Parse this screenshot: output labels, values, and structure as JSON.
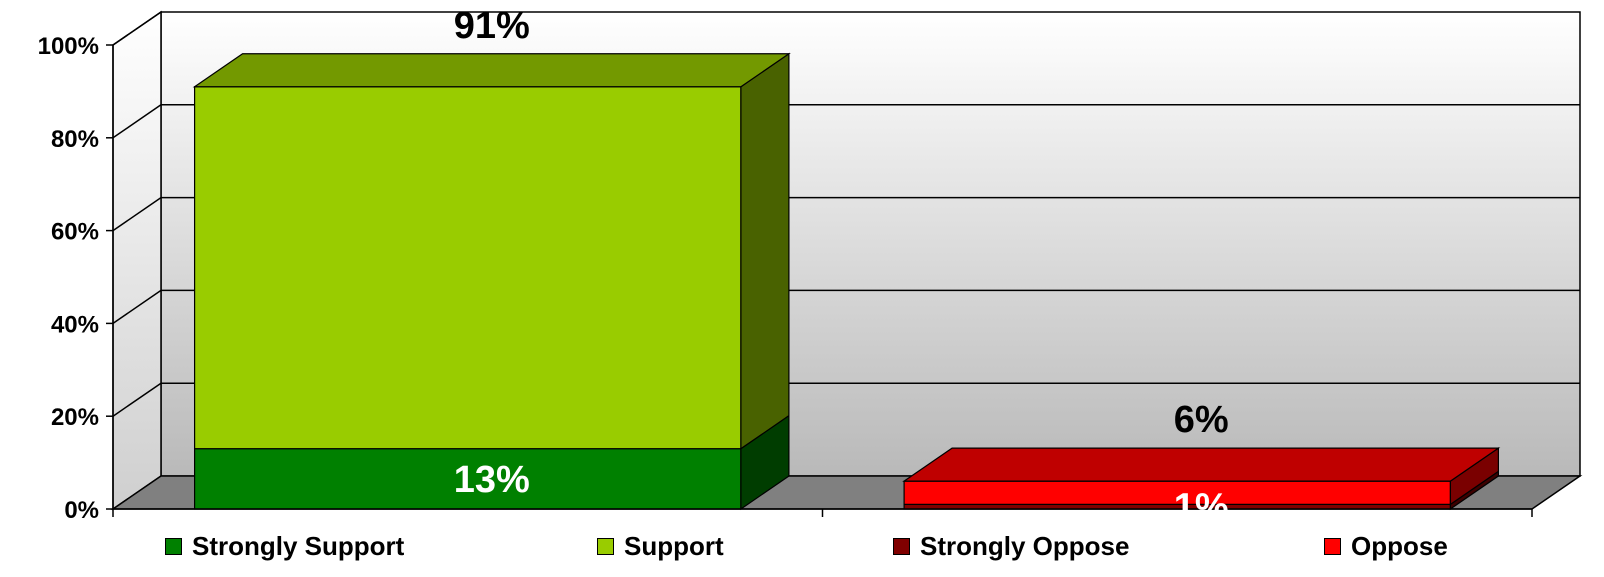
{
  "chart_data": {
    "type": "bar",
    "stacked": true,
    "three_d": true,
    "categories": [
      "",
      ""
    ],
    "series": [
      {
        "name": "Strongly Support",
        "color": "#008000",
        "values": [
          13,
          0
        ]
      },
      {
        "name": "Support",
        "color": "#99CC00",
        "values": [
          78,
          0
        ]
      },
      {
        "name": "Strongly Oppose",
        "color": "#800000",
        "values": [
          0,
          1
        ]
      },
      {
        "name": "Oppose",
        "color": "#FF0000",
        "values": [
          0,
          5
        ]
      }
    ],
    "data_labels": [
      {
        "text": "91%",
        "category": 0,
        "series": 1,
        "position": "above",
        "color": "#000000"
      },
      {
        "text": "13%",
        "category": 0,
        "series": 0,
        "position": "inside",
        "color": "#FFFFFF"
      },
      {
        "text": "6%",
        "category": 1,
        "series": 3,
        "position": "above",
        "color": "#000000"
      },
      {
        "text": "1%",
        "category": 1,
        "series": 2,
        "position": "inside",
        "color": "#FFFFFF"
      }
    ],
    "yticks": [
      "0%",
      "20%",
      "40%",
      "60%",
      "80%",
      "100%"
    ],
    "ylim": [
      0,
      100
    ],
    "grid": true,
    "legend_position": "bottom",
    "title": "",
    "xlabel": "",
    "ylabel": ""
  }
}
